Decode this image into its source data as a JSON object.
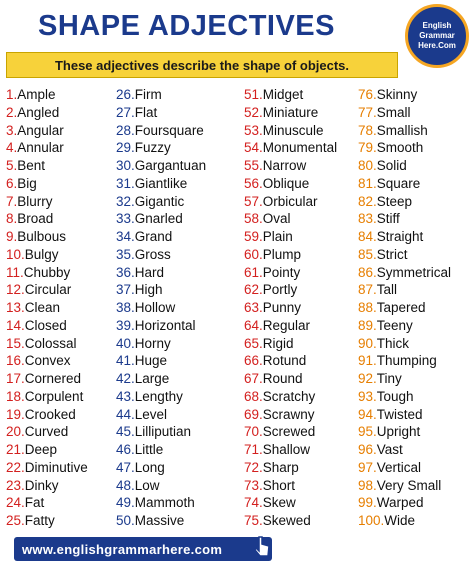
{
  "header": {
    "title": "SHAPE ADJECTIVES",
    "subtitle": "These adjectives describe the shape of objects.",
    "logo": "English Grammar Here.Com"
  },
  "columns": [
    [
      [
        "1.",
        "Ample"
      ],
      [
        "2.",
        "Angled"
      ],
      [
        "3.",
        "Angular"
      ],
      [
        "4.",
        "Annular"
      ],
      [
        "5.",
        "Bent"
      ],
      [
        "6.",
        "Big"
      ],
      [
        "7.",
        "Blurry"
      ],
      [
        "8.",
        "Broad"
      ],
      [
        "9.",
        "Bulbous"
      ],
      [
        "10.",
        "Bulgy"
      ],
      [
        "11.",
        "Chubby"
      ],
      [
        "12.",
        "Circular"
      ],
      [
        "13.",
        "Clean"
      ],
      [
        "14.",
        "Closed"
      ],
      [
        "15.",
        "Colossal"
      ],
      [
        "16.",
        "Convex"
      ],
      [
        "17.",
        "Cornered"
      ],
      [
        "18.",
        "Corpulent"
      ],
      [
        "19.",
        "Crooked"
      ],
      [
        "20.",
        "Curved"
      ],
      [
        "21.",
        "Deep"
      ],
      [
        "22.",
        "Diminutive"
      ],
      [
        "23.",
        "Dinky"
      ],
      [
        "24.",
        "Fat"
      ],
      [
        "25.",
        "Fatty"
      ]
    ],
    [
      [
        "26.",
        "Firm"
      ],
      [
        "27.",
        "Flat"
      ],
      [
        "28.",
        "Foursquare"
      ],
      [
        "29.",
        "Fuzzy"
      ],
      [
        "30.",
        "Gargantuan"
      ],
      [
        "31.",
        "Giantlike"
      ],
      [
        "32.",
        "Gigantic"
      ],
      [
        "33.",
        "Gnarled"
      ],
      [
        "34.",
        "Grand"
      ],
      [
        "35.",
        "Gross"
      ],
      [
        "36.",
        "Hard"
      ],
      [
        "37.",
        "High"
      ],
      [
        "38.",
        "Hollow"
      ],
      [
        "39.",
        "Horizontal"
      ],
      [
        "40.",
        "Horny"
      ],
      [
        "41.",
        "Huge"
      ],
      [
        "42.",
        "Large"
      ],
      [
        "43.",
        "Lengthy"
      ],
      [
        "44.",
        "Level"
      ],
      [
        "45.",
        "Lilliputian"
      ],
      [
        "46.",
        "Little"
      ],
      [
        "47.",
        "Long"
      ],
      [
        "48.",
        "Low"
      ],
      [
        "49.",
        "Mammoth"
      ],
      [
        "50.",
        "Massive"
      ]
    ],
    [
      [
        "51.",
        "Midget"
      ],
      [
        "52.",
        "Miniature"
      ],
      [
        "53.",
        "Minuscule"
      ],
      [
        "54.",
        "Monumental"
      ],
      [
        "55.",
        "Narrow"
      ],
      [
        "56.",
        "Oblique"
      ],
      [
        "57.",
        "Orbicular"
      ],
      [
        "58.",
        "Oval"
      ],
      [
        "59.",
        "Plain"
      ],
      [
        "60.",
        "Plump"
      ],
      [
        "61.",
        "Pointy"
      ],
      [
        "62.",
        "Portly"
      ],
      [
        "63.",
        "Punny"
      ],
      [
        "64.",
        "Regular"
      ],
      [
        "65.",
        "Rigid"
      ],
      [
        "66.",
        "Rotund"
      ],
      [
        "67.",
        "Round"
      ],
      [
        "68.",
        "Scratchy"
      ],
      [
        "69.",
        "Scrawny"
      ],
      [
        "70.",
        "Screwed"
      ],
      [
        "71.",
        "Shallow"
      ],
      [
        "72.",
        "Sharp"
      ],
      [
        "73.",
        "Short"
      ],
      [
        "74.",
        "Skew"
      ],
      [
        "75.",
        "Skewed"
      ]
    ],
    [
      [
        "76.",
        "Skinny"
      ],
      [
        "77.",
        "Small"
      ],
      [
        "78.",
        "Smallish"
      ],
      [
        "79.",
        "Smooth"
      ],
      [
        "80.",
        "Solid"
      ],
      [
        "81.",
        "Square"
      ],
      [
        "82.",
        "Steep"
      ],
      [
        "83.",
        "Stiff"
      ],
      [
        "84.",
        "Straight"
      ],
      [
        "85.",
        "Strict"
      ],
      [
        "86.",
        "Symmetrical"
      ],
      [
        "87.",
        "Tall"
      ],
      [
        "88.",
        "Tapered"
      ],
      [
        "89.",
        "Teeny"
      ],
      [
        "90.",
        "Thick"
      ],
      [
        "91.",
        "Thumping"
      ],
      [
        "92.",
        "Tiny"
      ],
      [
        "93.",
        "Tough"
      ],
      [
        "94.",
        "Twisted"
      ],
      [
        "95.",
        "Upright"
      ],
      [
        "96.",
        "Vast"
      ],
      [
        "97.",
        "Vertical"
      ],
      [
        "98.",
        "Very Small"
      ],
      [
        "99.",
        "Warped"
      ],
      [
        "100.",
        "Wide"
      ]
    ]
  ],
  "footer": {
    "url": "www.englishgrammarhere.com"
  }
}
